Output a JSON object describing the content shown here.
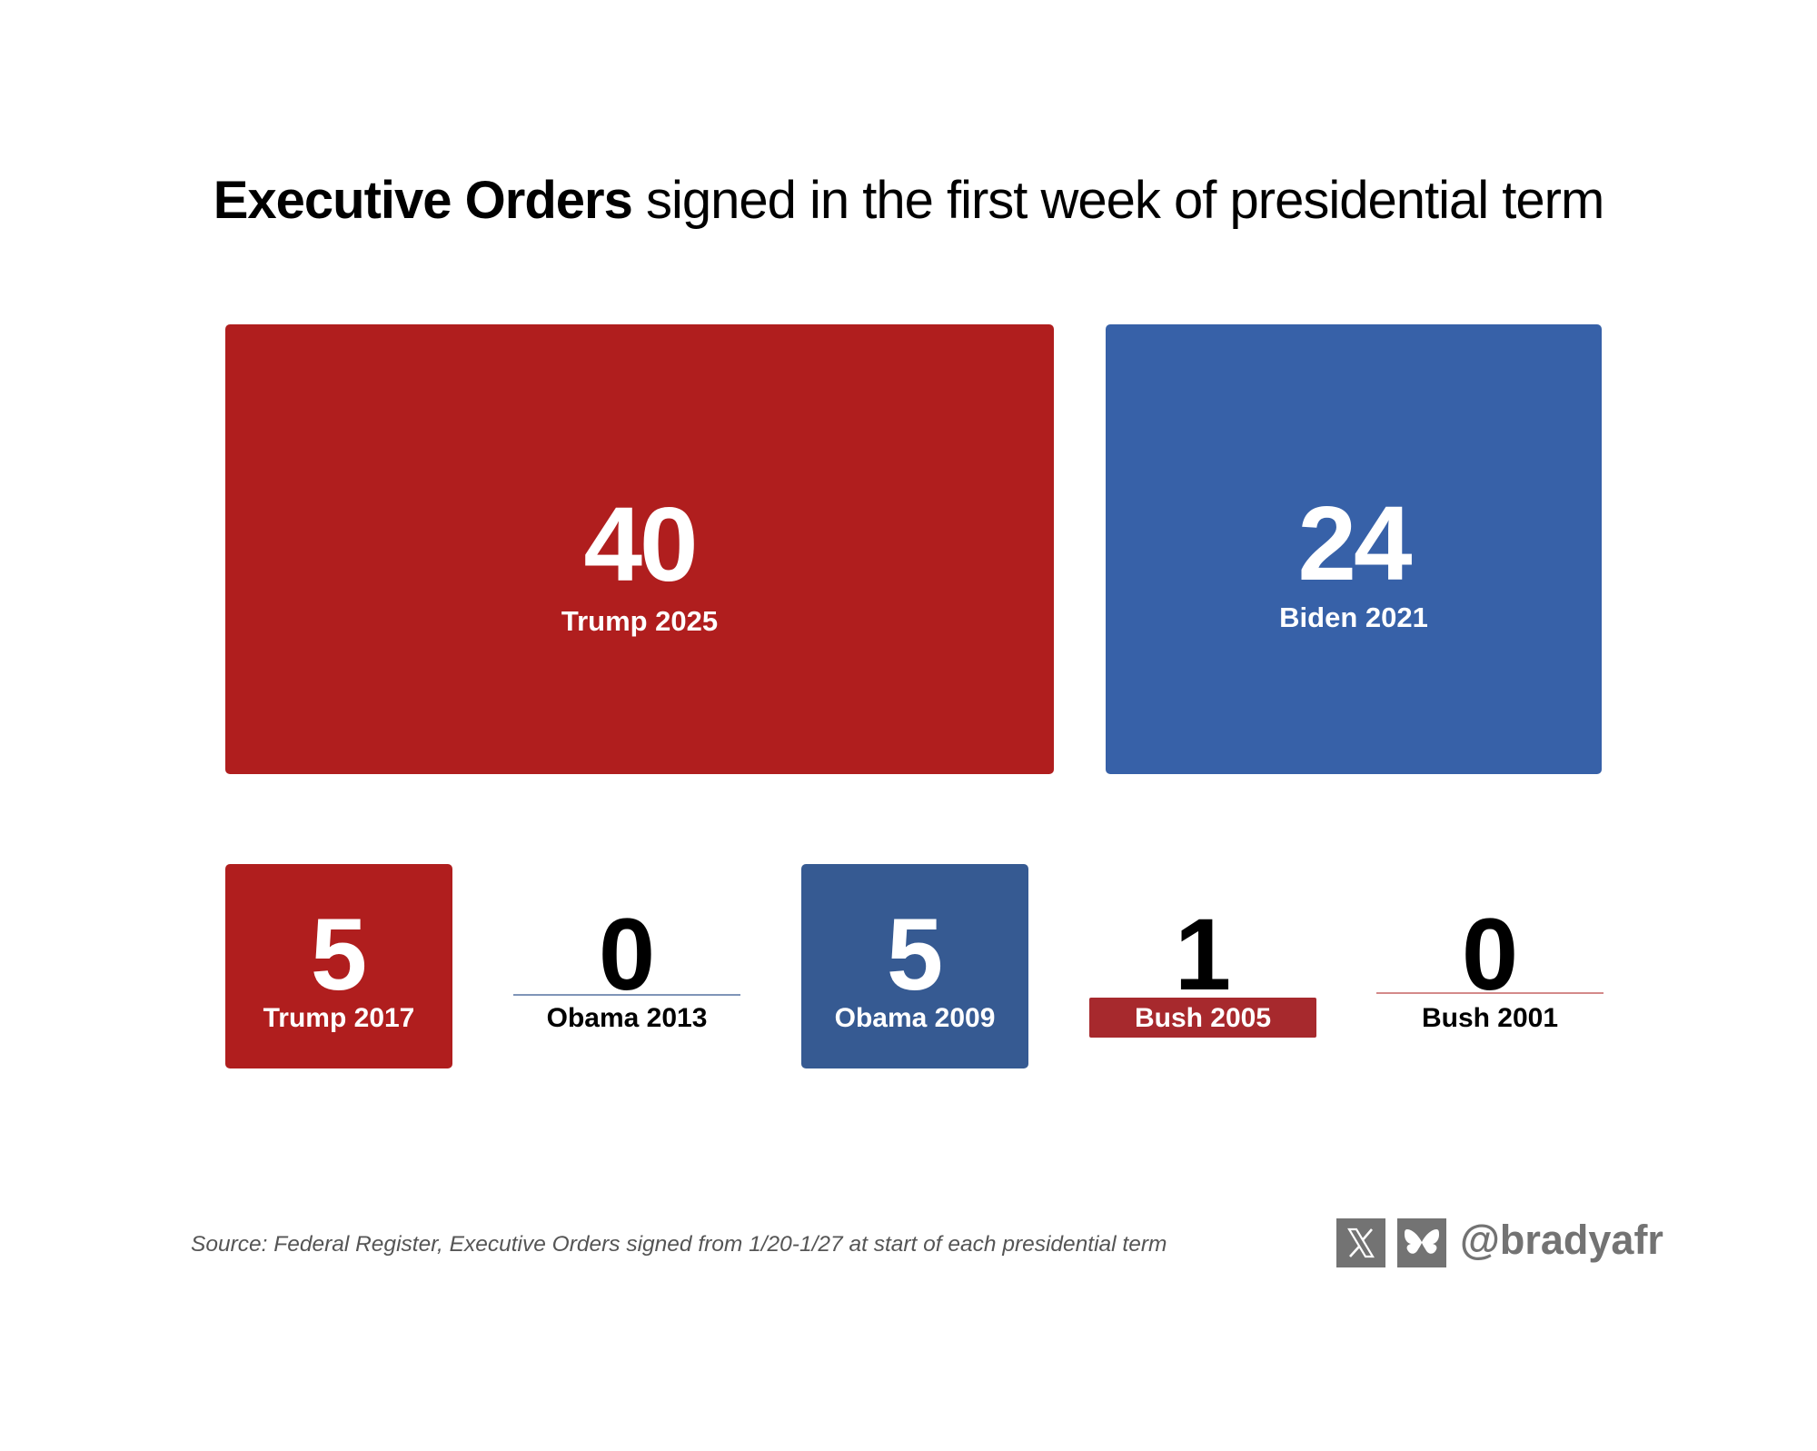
{
  "title": {
    "bold": "Executive Orders",
    "rest": " signed in the first week of presidential term"
  },
  "colors": {
    "red": "#B01E1E",
    "blue": "#3761A8",
    "blue_dark": "#365A92",
    "red_pill": "#A7292D",
    "gray": "#737373"
  },
  "chart_data": {
    "type": "table",
    "title": "Executive Orders signed in the first week of presidential term",
    "categories": [
      "Trump 2025",
      "Biden 2021",
      "Trump 2017",
      "Obama 2013",
      "Obama 2009",
      "Bush 2005",
      "Bush 2001"
    ],
    "values": [
      40,
      24,
      5,
      0,
      5,
      1,
      0
    ],
    "items": [
      {
        "label": "Trump 2025",
        "value": "40",
        "party_color": "red"
      },
      {
        "label": "Biden 2021",
        "value": "24",
        "party_color": "blue"
      },
      {
        "label": "Trump 2017",
        "value": "5",
        "party_color": "red"
      },
      {
        "label": "Obama 2013",
        "value": "0",
        "party_color": "blue"
      },
      {
        "label": "Obama 2009",
        "value": "5",
        "party_color": "blue"
      },
      {
        "label": "Bush 2005",
        "value": "1",
        "party_color": "red"
      },
      {
        "label": "Bush 2001",
        "value": "0",
        "party_color": "red"
      }
    ]
  },
  "footer": {
    "source": "Source: Federal Register, Executive Orders signed from 1/20-1/27 at start of each presidential term",
    "handle": "@bradyafr",
    "icons": [
      "x-icon",
      "bluesky-icon"
    ]
  }
}
